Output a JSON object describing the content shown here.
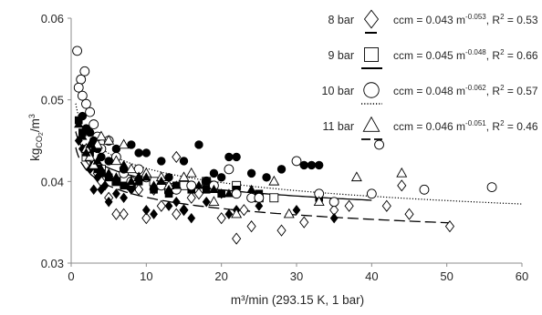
{
  "chart_data": {
    "type": "scatter",
    "title": "",
    "xlabel": "m³/min (293.15 K, 1 bar)",
    "ylabel_main": "kg",
    "ylabel_sub": "CO",
    "ylabel_sub2": "2",
    "ylabel_tail": "/m",
    "ylabel_sup": "3",
    "xlim": [
      0,
      60
    ],
    "ylim": [
      0.03,
      0.06
    ],
    "xticks": [
      0,
      10,
      20,
      30,
      40,
      50,
      60
    ],
    "yticks": [
      0.03,
      0.04,
      0.05,
      0.06
    ],
    "ytick_labels": [
      "0.03",
      "0.04",
      "0.05",
      "0.06"
    ],
    "grid": false,
    "legend_position": "top-right",
    "series": [
      {
        "name": "8 bar",
        "marker": "diamond",
        "fit_label": "ccm = 0.043 m",
        "fit_exp": "-0.053",
        "r2_text": ", R",
        "r2_sup": "2",
        "r2_value": " = 0.53",
        "fit": {
          "a": 0.043,
          "b": -0.053,
          "x_range": [
            0.6,
            50.4
          ],
          "style": "long-dash"
        },
        "hollow_points": [
          [
            2.5,
            0.0425
          ],
          [
            3.5,
            0.041
          ],
          [
            4,
            0.04
          ],
          [
            5,
            0.038
          ],
          [
            6,
            0.036
          ],
          [
            7,
            0.036
          ],
          [
            8,
            0.04
          ],
          [
            9,
            0.039
          ],
          [
            10,
            0.0355
          ],
          [
            11,
            0.039
          ],
          [
            12,
            0.037
          ],
          [
            14,
            0.043
          ],
          [
            14,
            0.036
          ],
          [
            15,
            0.0365
          ],
          [
            16,
            0.038
          ],
          [
            17,
            0.0385
          ],
          [
            20,
            0.0355
          ],
          [
            22,
            0.033
          ],
          [
            23,
            0.0365
          ],
          [
            24,
            0.0345
          ],
          [
            28,
            0.034
          ],
          [
            31,
            0.035
          ],
          [
            35,
            0.0365
          ],
          [
            37,
            0.037
          ],
          [
            42,
            0.037
          ],
          [
            44,
            0.0395
          ],
          [
            45,
            0.036
          ],
          [
            50.4,
            0.0345
          ]
        ],
        "filled_points": [
          [
            1,
            0.045
          ],
          [
            1.5,
            0.044
          ],
          [
            2,
            0.044
          ],
          [
            2.5,
            0.0415
          ],
          [
            3,
            0.039
          ],
          [
            3.5,
            0.0405
          ],
          [
            4,
            0.039
          ],
          [
            4.5,
            0.0395
          ],
          [
            5,
            0.0375
          ],
          [
            6,
            0.0385
          ],
          [
            7,
            0.038
          ],
          [
            8,
            0.039
          ],
          [
            10,
            0.0365
          ],
          [
            11,
            0.036
          ],
          [
            13,
            0.037
          ],
          [
            14,
            0.0375
          ],
          [
            15,
            0.0365
          ],
          [
            16,
            0.0355
          ],
          [
            18,
            0.0375
          ],
          [
            20,
            0.0385
          ],
          [
            21,
            0.036
          ],
          [
            22,
            0.0365
          ],
          [
            25,
            0.037
          ],
          [
            30,
            0.0365
          ],
          [
            35,
            0.0355
          ]
        ]
      },
      {
        "name": "9 bar",
        "marker": "square",
        "fit_label": "ccm = 0.045 m",
        "fit_exp": "-0.048",
        "r2_text": ", R",
        "r2_sup": "2",
        "r2_value": " = 0.66",
        "fit": {
          "a": 0.045,
          "b": -0.048,
          "x_range": [
            0.6,
            40
          ],
          "style": "solid"
        },
        "hollow_points": [
          [
            2,
            0.043
          ],
          [
            4,
            0.0415
          ],
          [
            6,
            0.04
          ],
          [
            8,
            0.0395
          ],
          [
            11,
            0.04
          ],
          [
            13,
            0.039
          ],
          [
            15,
            0.0395
          ],
          [
            18,
            0.04
          ],
          [
            22,
            0.0395
          ],
          [
            25,
            0.038
          ],
          [
            27,
            0.038
          ]
        ],
        "filled_points": [
          [
            1,
            0.0475
          ],
          [
            1.5,
            0.046
          ],
          [
            2,
            0.044
          ],
          [
            2.5,
            0.0435
          ],
          [
            3,
            0.042
          ],
          [
            3.5,
            0.0415
          ],
          [
            4,
            0.041
          ],
          [
            5,
            0.0405
          ],
          [
            6,
            0.04
          ],
          [
            7,
            0.0395
          ],
          [
            8,
            0.0395
          ],
          [
            9,
            0.04
          ],
          [
            11,
            0.039
          ],
          [
            13,
            0.0385
          ],
          [
            14,
            0.0395
          ],
          [
            16,
            0.039
          ],
          [
            18,
            0.039
          ],
          [
            20,
            0.0385
          ],
          [
            22,
            0.039
          ],
          [
            25,
            0.0385
          ],
          [
            33,
            0.038
          ]
        ]
      },
      {
        "name": "10 bar",
        "marker": "circle",
        "fit_label": "ccm = 0.048 m",
        "fit_exp": "-0.062",
        "r2_text": ", R",
        "r2_sup": "2",
        "r2_value": " = 0.57",
        "fit": {
          "a": 0.048,
          "b": -0.062,
          "x_range": [
            0.6,
            60
          ],
          "style": "dotted"
        },
        "hollow_points": [
          [
            0.8,
            0.056
          ],
          [
            1.3,
            0.0525
          ],
          [
            1.8,
            0.0535
          ],
          [
            1,
            0.0515
          ],
          [
            1.5,
            0.0505
          ],
          [
            2,
            0.0495
          ],
          [
            2.5,
            0.0485
          ],
          [
            3,
            0.047
          ],
          [
            3.5,
            0.0455
          ],
          [
            4,
            0.044
          ],
          [
            5,
            0.045
          ],
          [
            6,
            0.043
          ],
          [
            7,
            0.041
          ],
          [
            8,
            0.04
          ],
          [
            9,
            0.0415
          ],
          [
            10,
            0.0405
          ],
          [
            12,
            0.0395
          ],
          [
            14,
            0.039
          ],
          [
            16,
            0.0395
          ],
          [
            18,
            0.04
          ],
          [
            19,
            0.0395
          ],
          [
            21,
            0.0415
          ],
          [
            22,
            0.0385
          ],
          [
            24,
            0.038
          ],
          [
            25,
            0.038
          ],
          [
            30,
            0.0425
          ],
          [
            33,
            0.0385
          ],
          [
            35,
            0.0375
          ],
          [
            40,
            0.0385
          ],
          [
            41,
            0.0445
          ],
          [
            47,
            0.039
          ],
          [
            56,
            0.0393
          ]
        ],
        "filled_points": [
          [
            1.5,
            0.048
          ],
          [
            2,
            0.0465
          ],
          [
            2.5,
            0.046
          ],
          [
            3,
            0.045
          ],
          [
            3.5,
            0.044
          ],
          [
            4,
            0.043
          ],
          [
            5,
            0.0425
          ],
          [
            6,
            0.044
          ],
          [
            7,
            0.0415
          ],
          [
            8,
            0.0445
          ],
          [
            9,
            0.0435
          ],
          [
            10,
            0.0435
          ],
          [
            12,
            0.0425
          ],
          [
            13,
            0.0405
          ],
          [
            15,
            0.0425
          ],
          [
            17,
            0.0445
          ],
          [
            18,
            0.04
          ],
          [
            19,
            0.041
          ],
          [
            20,
            0.0405
          ],
          [
            21,
            0.043
          ],
          [
            22,
            0.043
          ],
          [
            24,
            0.041
          ],
          [
            26,
            0.0405
          ],
          [
            28,
            0.0415
          ],
          [
            31,
            0.042
          ],
          [
            32,
            0.042
          ],
          [
            33,
            0.042
          ]
        ]
      },
      {
        "name": "11 bar",
        "marker": "triangle",
        "fit_label": "ccm = 0.046 m",
        "fit_exp": "-0.051",
        "r2_text": ", R",
        "r2_sup": "2",
        "r2_value": " = 0.46",
        "fit": {
          "a": 0.046,
          "b": -0.051,
          "x_range": [
            0.6,
            45
          ],
          "style": "none"
        },
        "hollow_points": [
          [
            2,
            0.044
          ],
          [
            2.5,
            0.043
          ],
          [
            3,
            0.042
          ],
          [
            3.5,
            0.0445
          ],
          [
            4,
            0.0455
          ],
          [
            5,
            0.045
          ],
          [
            6,
            0.0425
          ],
          [
            7,
            0.0445
          ],
          [
            8,
            0.0415
          ],
          [
            9,
            0.0405
          ],
          [
            10,
            0.041
          ],
          [
            12,
            0.0405
          ],
          [
            13,
            0.0395
          ],
          [
            15,
            0.0405
          ],
          [
            16,
            0.041
          ],
          [
            19,
            0.0375
          ],
          [
            22,
            0.036
          ],
          [
            27,
            0.04
          ],
          [
            29,
            0.036
          ],
          [
            33,
            0.0375
          ],
          [
            38,
            0.0405
          ],
          [
            44,
            0.041
          ]
        ],
        "filled_points": [
          [
            1,
            0.047
          ],
          [
            1.5,
            0.0455
          ],
          [
            2,
            0.0435
          ],
          [
            2.5,
            0.0445
          ],
          [
            3,
            0.044
          ],
          [
            3.5,
            0.0425
          ],
          [
            4,
            0.0415
          ],
          [
            5,
            0.041
          ],
          [
            6,
            0.0405
          ],
          [
            7,
            0.042
          ],
          [
            8,
            0.04
          ],
          [
            9,
            0.0405
          ],
          [
            10,
            0.0405
          ],
          [
            11,
            0.0395
          ],
          [
            12,
            0.04
          ],
          [
            13,
            0.039
          ],
          [
            14,
            0.0395
          ],
          [
            17,
            0.0395
          ],
          [
            19,
            0.039
          ],
          [
            21,
            0.0385
          ],
          [
            24,
            0.039
          ]
        ]
      }
    ]
  }
}
